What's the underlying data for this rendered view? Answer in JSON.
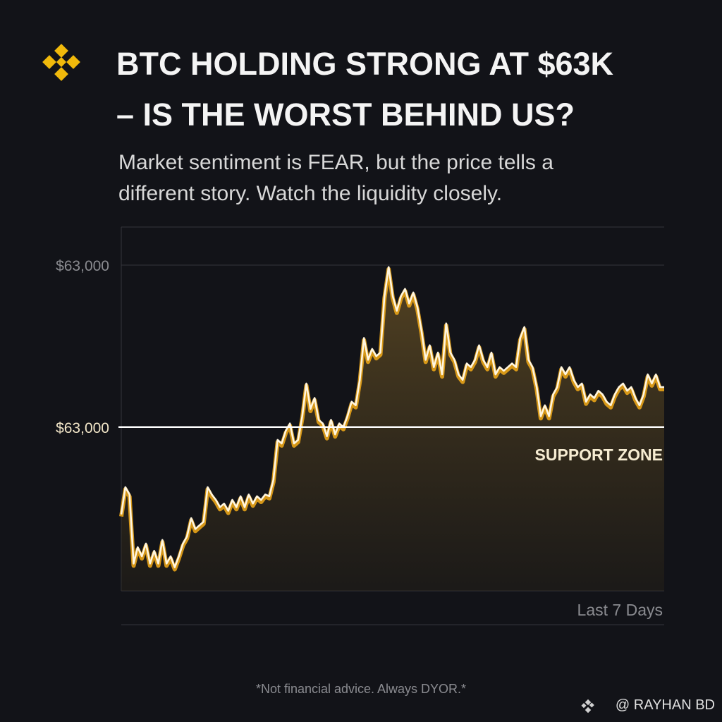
{
  "header": {
    "title_lines": [
      "BTC HOLDING STRONG AT $63K",
      "– IS THE WORST BEHIND US?"
    ],
    "subtitle_lines": [
      "Market sentiment is FEAR, but the price tells a",
      "different story.  Watch the liquidity closely."
    ]
  },
  "chart_data": {
    "type": "line",
    "color": "#e8a317",
    "values": [
      62520,
      62670,
      62630,
      62250,
      62340,
      62290,
      62360,
      62250,
      62320,
      62250,
      62380,
      62250,
      62290,
      62230,
      62290,
      62360,
      62400,
      62500,
      62440,
      62460,
      62480,
      62670,
      62630,
      62600,
      62560,
      62580,
      62540,
      62600,
      62560,
      62620,
      62560,
      62630,
      62580,
      62620,
      62600,
      62630,
      62620,
      62710,
      62930,
      62910,
      62980,
      63020,
      62910,
      62930,
      63060,
      63240,
      63100,
      63160,
      63040,
      63020,
      62950,
      63040,
      62960,
      63020,
      63000,
      63060,
      63140,
      63120,
      63260,
      63490,
      63370,
      63430,
      63390,
      63410,
      63720,
      63880,
      63720,
      63640,
      63720,
      63760,
      63680,
      63740,
      63660,
      63530,
      63370,
      63450,
      63330,
      63410,
      63290,
      63570,
      63410,
      63370,
      63290,
      63260,
      63350,
      63330,
      63370,
      63450,
      63370,
      63330,
      63410,
      63290,
      63330,
      63310,
      63330,
      63350,
      63330,
      63490,
      63550,
      63370,
      63330,
      63220,
      63060,
      63120,
      63060,
      63180,
      63220,
      63330,
      63290,
      63330,
      63260,
      63220,
      63240,
      63140,
      63180,
      63160,
      63200,
      63180,
      63140,
      63120,
      63180,
      63220,
      63240,
      63200,
      63220,
      63160,
      63120,
      63180,
      63290,
      63240,
      63290,
      63220,
      63220
    ],
    "ylim": [
      62100,
      64100
    ],
    "annotation": "$63,000",
    "support": {
      "value": 63000,
      "label": "$63,000",
      "name": "SUPPORT ZONE"
    },
    "x_label": "Last 7 Days"
  },
  "footer": {
    "disclaimer": "*Not financial advice. Always DYOR.*",
    "credit": "@ RAYHAN BD"
  }
}
